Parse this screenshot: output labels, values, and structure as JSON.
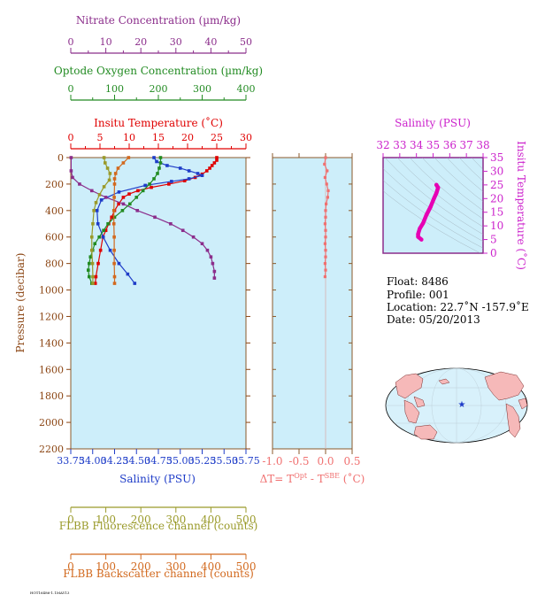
{
  "chart_data": [
    {
      "type": "line",
      "y_axis": {
        "label": "Pressure (decibar)",
        "ticks": [
          "0",
          "200",
          "400",
          "600",
          "800",
          "1000",
          "1200",
          "1400",
          "1600",
          "1800",
          "2000",
          "2200"
        ],
        "ylim": [
          2200,
          0
        ],
        "color": "#8b4513"
      },
      "top_axes": [
        {
          "label": "Nitrate Concentration (µm/kg)",
          "ticks": [
            "0",
            "10",
            "20",
            "30",
            "40",
            "50"
          ],
          "xlim": [
            0,
            50
          ],
          "color": "#8b2d8b"
        },
        {
          "label": "Optode Oxygen Concentration (µm/kg)",
          "ticks": [
            "0",
            "100",
            "200",
            "300",
            "400"
          ],
          "xlim": [
            0,
            400
          ],
          "color": "#228b22"
        },
        {
          "label": "Insitu Temperature (˚C)",
          "ticks": [
            "0",
            "5",
            "10",
            "15",
            "20",
            "25",
            "30"
          ],
          "xlim": [
            0,
            30
          ],
          "color": "#e00000"
        }
      ],
      "bottom_axes": [
        {
          "label": "Salinity (PSU)",
          "ticks": [
            "33.75",
            "34.00",
            "34.25",
            "34.50",
            "34.75",
            "35.00",
            "35.25",
            "35.50",
            "35.75"
          ],
          "xlim": [
            33.75,
            35.75
          ],
          "color": "#1e3cc8"
        },
        {
          "label": "FLBB Fluorescence channel (counts)",
          "ticks": [
            "0",
            "100",
            "200",
            "300",
            "400",
            "500"
          ],
          "xlim": [
            0,
            500
          ],
          "color": "#9a9a2a"
        },
        {
          "label": "FLBB Backscatter channel (counts)",
          "ticks": [
            "0",
            "100",
            "200",
            "300",
            "400",
            "500"
          ],
          "xlim": [
            0,
            500
          ],
          "color": "#d2691e"
        }
      ],
      "series": [
        {
          "axis": "Insitu Temperature",
          "color": "#e00000",
          "points": [
            [
              25.0,
              0
            ],
            [
              25.0,
              20
            ],
            [
              24.6,
              40
            ],
            [
              24.2,
              60
            ],
            [
              23.8,
              80
            ],
            [
              23.3,
              100
            ],
            [
              22.5,
              125
            ],
            [
              21.3,
              150
            ],
            [
              19.5,
              175
            ],
            [
              16.8,
              200
            ],
            [
              13.8,
              225
            ],
            [
              11.5,
              250
            ],
            [
              10.0,
              275
            ],
            [
              9.0,
              300
            ],
            [
              8.2,
              350
            ],
            [
              7.5,
              400
            ],
            [
              7.0,
              450
            ],
            [
              6.5,
              500
            ],
            [
              6.0,
              550
            ],
            [
              5.5,
              600
            ],
            [
              5.1,
              700
            ],
            [
              4.7,
              800
            ],
            [
              4.3,
              900
            ],
            [
              4.2,
              950
            ]
          ]
        },
        {
          "axis": "Salinity",
          "color": "#1e3cc8",
          "points": [
            [
              34.7,
              0
            ],
            [
              34.73,
              30
            ],
            [
              34.85,
              60
            ],
            [
              35.0,
              80
            ],
            [
              35.1,
              100
            ],
            [
              35.2,
              120
            ],
            [
              35.25,
              135
            ],
            [
              35.1,
              160
            ],
            [
              34.9,
              180
            ],
            [
              34.6,
              210
            ],
            [
              34.3,
              260
            ],
            [
              34.1,
              320
            ],
            [
              34.05,
              400
            ],
            [
              34.06,
              500
            ],
            [
              34.12,
              600
            ],
            [
              34.2,
              700
            ],
            [
              34.3,
              800
            ],
            [
              34.4,
              880
            ],
            [
              34.48,
              950
            ]
          ]
        },
        {
          "axis": "Nitrate Concentration",
          "color": "#8b2d8b",
          "points": [
            [
              0.1,
              0
            ],
            [
              0.1,
              100
            ],
            [
              0.5,
              150
            ],
            [
              2.5,
              200
            ],
            [
              6.0,
              250
            ],
            [
              10.0,
              300
            ],
            [
              15.0,
              350
            ],
            [
              19.0,
              400
            ],
            [
              24.0,
              450
            ],
            [
              28.5,
              500
            ],
            [
              32.0,
              550
            ],
            [
              35.0,
              600
            ],
            [
              37.5,
              650
            ],
            [
              39.0,
              700
            ],
            [
              40.0,
              750
            ],
            [
              40.5,
              800
            ],
            [
              41.0,
              860
            ],
            [
              41.0,
              910
            ]
          ]
        },
        {
          "axis": "Optode Oxygen Concentration",
          "color": "#228b22",
          "points": [
            [
              205,
              0
            ],
            [
              205,
              40
            ],
            [
              202,
              80
            ],
            [
              198,
              120
            ],
            [
              190,
              160
            ],
            [
              180,
              200
            ],
            [
              165,
              250
            ],
            [
              150,
              300
            ],
            [
              135,
              350
            ],
            [
              118,
              400
            ],
            [
              100,
              450
            ],
            [
              85,
              500
            ],
            [
              75,
              550
            ],
            [
              65,
              600
            ],
            [
              55,
              650
            ],
            [
              50,
              700
            ],
            [
              45,
              750
            ],
            [
              42,
              800
            ],
            [
              40,
              850
            ],
            [
              42,
              900
            ],
            [
              48,
              950
            ]
          ]
        },
        {
          "axis": "FLBB Fluorescence channel",
          "color": "#9a9a2a",
          "points": [
            [
              95,
              0
            ],
            [
              98,
              40
            ],
            [
              105,
              80
            ],
            [
              112,
              120
            ],
            [
              110,
              170
            ],
            [
              95,
              220
            ],
            [
              82,
              280
            ],
            [
              72,
              340
            ],
            [
              66,
              400
            ],
            [
              63,
              500
            ],
            [
              60,
              600
            ],
            [
              60,
              700
            ],
            [
              62,
              800
            ],
            [
              63,
              900
            ],
            [
              63,
              950
            ]
          ]
        },
        {
          "axis": "FLBB Backscatter channel",
          "color": "#d2691e",
          "points": [
            [
              165,
              0
            ],
            [
              150,
              40
            ],
            [
              135,
              80
            ],
            [
              128,
              120
            ],
            [
              125,
              160
            ],
            [
              125,
              200
            ],
            [
              124,
              300
            ],
            [
              123,
              400
            ],
            [
              123,
              500
            ],
            [
              124,
              600
            ],
            [
              124,
              700
            ],
            [
              124,
              800
            ],
            [
              125,
              900
            ],
            [
              125,
              950
            ]
          ]
        }
      ]
    },
    {
      "type": "line",
      "xlabel_main": "ΔT= T",
      "xlabel_sup1": "Opt",
      "xlabel_mid": " - T",
      "xlabel_sup2": "SBE",
      "xlabel_unit": " (˚C)",
      "color": "#f07070",
      "xlim": [
        -1.0,
        0.5
      ],
      "ticks": [
        "-1.0",
        "-0.5",
        "0.0",
        "0.5"
      ],
      "tick_values": [
        -1.0,
        -0.5,
        0.0,
        0.5
      ],
      "ylim": [
        2200,
        0
      ],
      "points": [
        [
          0.0,
          0
        ],
        [
          -0.02,
          50
        ],
        [
          0.03,
          100
        ],
        [
          -0.01,
          150
        ],
        [
          0.02,
          200
        ],
        [
          0.05,
          250
        ],
        [
          0.04,
          300
        ],
        [
          0.01,
          350
        ],
        [
          0.0,
          400
        ],
        [
          0.0,
          450
        ],
        [
          -0.01,
          500
        ],
        [
          0.0,
          550
        ],
        [
          0.0,
          600
        ],
        [
          -0.01,
          650
        ],
        [
          0.0,
          700
        ],
        [
          0.0,
          750
        ],
        [
          -0.01,
          800
        ],
        [
          0.0,
          850
        ],
        [
          -0.01,
          900
        ]
      ]
    },
    {
      "type": "line",
      "title": "Salinity (PSU)",
      "ylabel": "Insitu Temperature (˚C)",
      "color": "#e600b4",
      "xlim": [
        32,
        38
      ],
      "ylim": [
        0,
        35
      ],
      "xticks": [
        "32",
        "33",
        "34",
        "35",
        "36",
        "37",
        "38"
      ],
      "yticks": [
        "0",
        "5",
        "10",
        "15",
        "20",
        "25",
        "30",
        "35"
      ],
      "points": [
        [
          35.2,
          25.0
        ],
        [
          35.3,
          24.0
        ],
        [
          35.2,
          22.0
        ],
        [
          35.05,
          20.0
        ],
        [
          34.85,
          17.0
        ],
        [
          34.6,
          14.0
        ],
        [
          34.4,
          11.0
        ],
        [
          34.2,
          9.0
        ],
        [
          34.1,
          7.0
        ],
        [
          34.1,
          6.0
        ],
        [
          34.3,
          5.0
        ]
      ]
    }
  ],
  "float_info": {
    "float": "Float:  8486",
    "profile": "Profile:  001",
    "location": "Location:  22.7˚N  -157.9˚E",
    "date": "Date:  05/20/2013"
  },
  "map": {
    "marker_lat": 22.7,
    "marker_lon": -157.9,
    "marker_symbol": "★"
  },
  "footer": "HOT16486-1.1MAY13"
}
